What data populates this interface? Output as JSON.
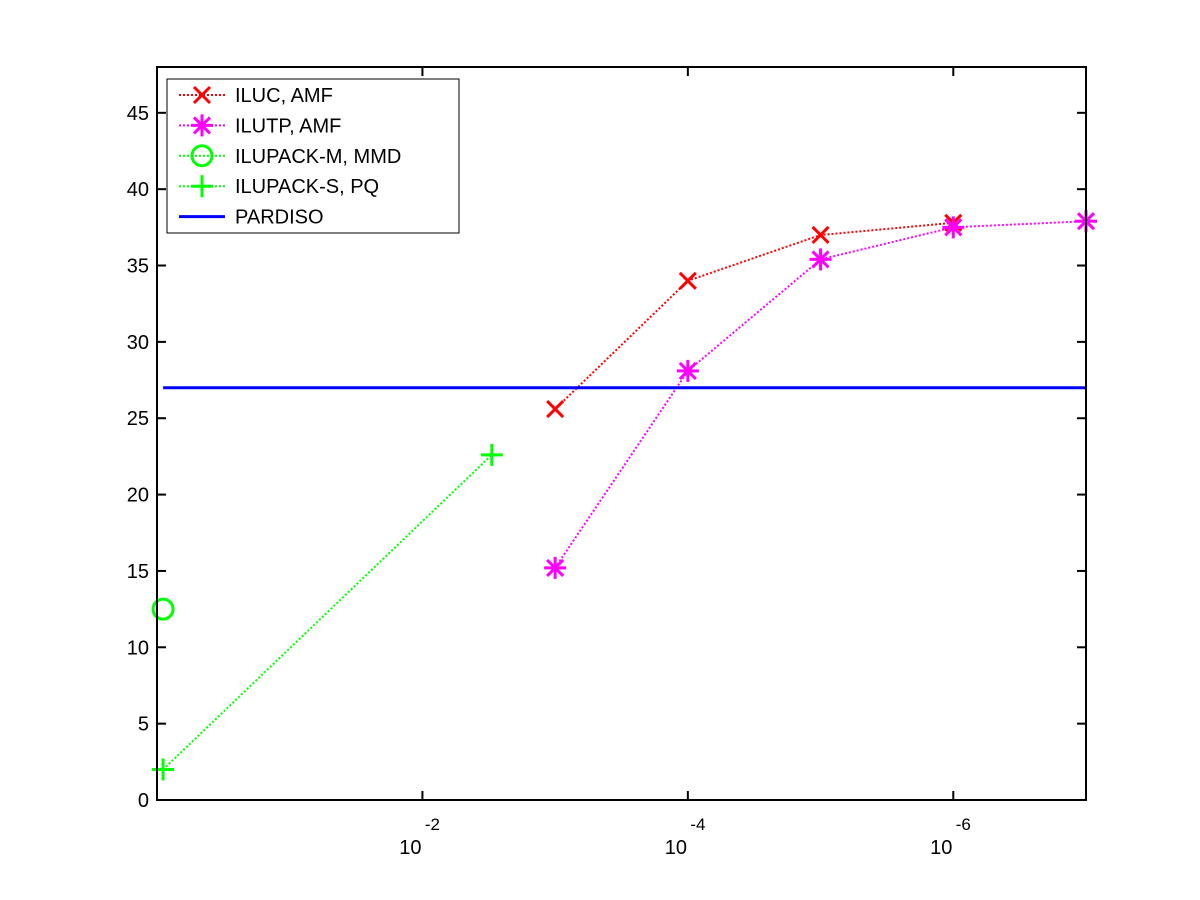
{
  "chart_data": {
    "type": "line",
    "title": "",
    "xlabel": "",
    "ylabel": "",
    "xscale": "log",
    "xaxis_reversed": true,
    "xlim": [
      1,
      1e-07
    ],
    "ylim": [
      0,
      48
    ],
    "grid": false,
    "legend_position": "top-left",
    "x_ticks": [
      {
        "value": 0.01,
        "base": "10",
        "exp": "-2"
      },
      {
        "value": 0.0001,
        "base": "10",
        "exp": "-4"
      },
      {
        "value": 1e-06,
        "base": "10",
        "exp": "-6"
      }
    ],
    "y_ticks": [
      {
        "value": 0,
        "label": "0"
      },
      {
        "value": 5,
        "label": "5"
      },
      {
        "value": 10,
        "label": "10"
      },
      {
        "value": 15,
        "label": "15"
      },
      {
        "value": 20,
        "label": "20"
      },
      {
        "value": 25,
        "label": "25"
      },
      {
        "value": 30,
        "label": "30"
      },
      {
        "value": 35,
        "label": "35"
      },
      {
        "value": 40,
        "label": "40"
      },
      {
        "value": 45,
        "label": "45"
      }
    ],
    "series": [
      {
        "name": "ILUC, AMF",
        "color": "#ff0000",
        "marker": "x",
        "line": "dotted",
        "x": [
          0.001,
          0.0001,
          1e-05,
          1e-06
        ],
        "y": [
          25.6,
          34.0,
          37.0,
          37.8
        ]
      },
      {
        "name": "ILUTP, AMF",
        "color": "#ff00ff",
        "marker": "asterisk",
        "line": "dotted",
        "x": [
          0.001,
          0.0001,
          1e-05,
          1e-06,
          1e-07
        ],
        "y": [
          15.2,
          28.1,
          35.4,
          37.5,
          37.9
        ]
      },
      {
        "name": "ILUPACK-M, MMD",
        "color": "#00ff00",
        "marker": "circle",
        "line": "dotted",
        "x": [
          0.9
        ],
        "y": [
          12.5
        ]
      },
      {
        "name": "ILUPACK-S, PQ",
        "color": "#00ff00",
        "marker": "plus",
        "line": "dotted",
        "x": [
          0.9,
          0.003
        ],
        "y": [
          2.0,
          22.6
        ]
      },
      {
        "name": "PARDISO",
        "color": "#0000ff",
        "marker": "none",
        "line": "solid",
        "x": [
          0.9,
          1e-07
        ],
        "y": [
          27.0,
          27.0
        ]
      }
    ]
  }
}
